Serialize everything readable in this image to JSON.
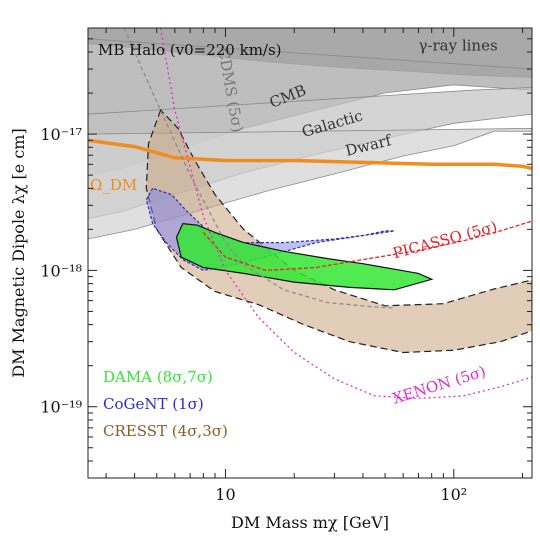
{
  "chart_data": {
    "type": "line",
    "title": "",
    "annotation": "MB Halo (v0=220 km/s)",
    "xlabel": "DM Mass   mχ [GeV]",
    "ylabel": "DM Magnetic Dipole   λχ [e cm]",
    "xscale": "log",
    "yscale": "log",
    "xlim": [
      2.5,
      220
    ],
    "ylim": [
      3e-20,
      6e-17
    ],
    "x_ticks": [
      {
        "value": 10,
        "label": "10"
      },
      {
        "value": 100,
        "label": "10²"
      }
    ],
    "y_ticks": [
      {
        "value": 1e-19,
        "label": "10⁻¹⁹"
      },
      {
        "value": 1e-18,
        "label": "10⁻¹⁸"
      },
      {
        "value": 1e-17,
        "label": "10⁻¹⁷"
      }
    ],
    "grid": false,
    "colors": {
      "dama": "#33e633",
      "cogent": "#7f7ff0",
      "cresst": "#c8a47e",
      "omega": "#f28c1e",
      "picasso": "#e8242c",
      "xenon": "#e62ad0",
      "cdms": "#8c8c8c",
      "exclusion": "#a8a8a8"
    },
    "exclusion_regions": [
      {
        "name": "γ-ray lines",
        "points": [
          [
            2.5,
            6e-17
          ],
          [
            220,
            6e-17
          ],
          [
            220,
            2.6e-17
          ],
          [
            120,
            2.7e-17
          ],
          [
            60,
            2.9e-17
          ],
          [
            30,
            3.1e-17
          ],
          [
            15,
            3.4e-17
          ],
          [
            8,
            3.8e-17
          ],
          [
            4,
            4.3e-17
          ],
          [
            2.5,
            4.6e-17
          ]
        ]
      },
      {
        "name": "CMB",
        "points": [
          [
            2.5,
            5e-17
          ],
          [
            220,
            3e-17
          ],
          [
            220,
            2.1e-17
          ],
          [
            100,
            2.3e-17
          ],
          [
            50,
            2e-17
          ],
          [
            25,
            1.5e-17
          ],
          [
            12,
            1.1e-17
          ],
          [
            6,
            7.6e-18
          ],
          [
            3.5,
            5.6e-18
          ],
          [
            2.5,
            5e-18
          ]
        ]
      },
      {
        "name": "Galactic",
        "points": [
          [
            2.5,
            1.4e-17
          ],
          [
            120,
            2.1e-17
          ],
          [
            220,
            2.2e-17
          ],
          [
            220,
            1.4e-17
          ],
          [
            100,
            1.2e-17
          ],
          [
            50,
            9.3e-18
          ],
          [
            25,
            7.1e-18
          ],
          [
            12,
            5.2e-18
          ],
          [
            6,
            3.6e-18
          ],
          [
            3.5,
            2.7e-18
          ],
          [
            2.5,
            2.4e-18
          ]
        ]
      },
      {
        "name": "Dwarf",
        "points": [
          [
            2.5,
            1e-17
          ],
          [
            220,
            1.1e-17
          ],
          [
            220,
            1.05e-17
          ],
          [
            150,
            1.05e-17
          ],
          [
            100,
            8.2e-18
          ],
          [
            60,
            6.9e-18
          ],
          [
            30,
            5.1e-18
          ],
          [
            15,
            3.8e-18
          ],
          [
            8,
            2.8e-18
          ],
          [
            4,
            2e-18
          ],
          [
            2.5,
            1.7e-18
          ]
        ]
      }
    ],
    "signal_regions": [
      {
        "name": "CRESST",
        "sigma": "4σ,3σ",
        "points": [
          [
            5.2,
            1.5e-17
          ],
          [
            4.6,
            8.5e-18
          ],
          [
            4.5,
            4e-18
          ],
          [
            5,
            2e-18
          ],
          [
            6.4,
            1.05e-18
          ],
          [
            9,
            7e-19
          ],
          [
            14,
            5.6e-19
          ],
          [
            22,
            4e-19
          ],
          [
            35,
            3e-19
          ],
          [
            60,
            2.5e-19
          ],
          [
            100,
            2.6e-19
          ],
          [
            160,
            3e-19
          ],
          [
            220,
            3.6e-19
          ],
          [
            220,
            8.5e-19
          ],
          [
            150,
            7.3e-19
          ],
          [
            90,
            5.7e-19
          ],
          [
            50,
            5.5e-19
          ],
          [
            30,
            7.2e-19
          ],
          [
            20,
            1e-18
          ],
          [
            12,
            2e-18
          ],
          [
            9,
            3.6e-18
          ],
          [
            7.3,
            6.5e-18
          ],
          [
            6.2,
            1.1e-17
          ]
        ]
      },
      {
        "name": "CoGeNT",
        "sigma": "1σ",
        "points": [
          [
            4.8,
            4e-18
          ],
          [
            4.5,
            3.3e-18
          ],
          [
            4.8,
            2.2e-18
          ],
          [
            5.5,
            1.6e-18
          ],
          [
            6.5,
            1.2e-18
          ],
          [
            8,
            1e-18
          ],
          [
            11,
            1.1e-18
          ],
          [
            16,
            1.3e-18
          ],
          [
            25,
            1.6e-18
          ],
          [
            40,
            1.8e-18
          ],
          [
            50,
            1.95e-18
          ],
          [
            55,
            1.95e-18
          ],
          [
            45,
            1.85e-18
          ],
          [
            30,
            1.7e-18
          ],
          [
            18,
            1.6e-18
          ],
          [
            12,
            1.6e-18
          ],
          [
            8.5,
            1.9e-18
          ],
          [
            6.8,
            2.7e-18
          ],
          [
            5.8,
            3.6e-18
          ]
        ]
      },
      {
        "name": "DAMA",
        "sigma": "8σ,7σ",
        "points": [
          [
            6.5,
            2.2e-18
          ],
          [
            6.1,
            1.75e-18
          ],
          [
            6.4,
            1.25e-18
          ],
          [
            8,
            1.05e-18
          ],
          [
            12,
            9.5e-19
          ],
          [
            20,
            8.2e-19
          ],
          [
            35,
            7.5e-19
          ],
          [
            55,
            7.2e-19
          ],
          [
            80,
            8.6e-19
          ],
          [
            70,
            9.5e-19
          ],
          [
            55,
            1.02e-18
          ],
          [
            40,
            1.12e-18
          ],
          [
            28,
            1.22e-18
          ],
          [
            18,
            1.38e-18
          ],
          [
            12,
            1.6e-18
          ],
          [
            9,
            1.9e-18
          ],
          [
            7.5,
            2.15e-18
          ]
        ]
      }
    ],
    "limit_curves": [
      {
        "name": "Ω_DM",
        "x": [
          2.5,
          4,
          6,
          10,
          20,
          40,
          80,
          150,
          200,
          220
        ],
        "y": [
          9e-18,
          8.1e-18,
          6.7e-18,
          6.4e-18,
          6.4e-18,
          6.2e-18,
          6e-18,
          6e-18,
          5.8e-18,
          5.6e-18
        ]
      },
      {
        "name": "CDMS (5σ)",
        "x": [
          3.6,
          4.8,
          7,
          10,
          12,
          18,
          28,
          45,
          55
        ],
        "y": [
          6e-17,
          2e-17,
          5e-18,
          1.6e-18,
          1.1e-18,
          7.2e-19,
          5.8e-19,
          5.4e-19,
          5.3e-19
        ]
      },
      {
        "name": "PICASSO (5σ)",
        "x": [
          8,
          10,
          15,
          25,
          40,
          70,
          110,
          160,
          220
        ],
        "y": [
          1.9e-18,
          1.25e-18,
          1e-18,
          1.05e-18,
          1.2e-18,
          1.4e-18,
          1.65e-18,
          1.95e-18,
          2.3e-18
        ]
      },
      {
        "name": "XENON (5σ)",
        "x": [
          5.2,
          6,
          8,
          10,
          14,
          20,
          30,
          45,
          70,
          110,
          160,
          220
        ],
        "y": [
          6e-17,
          1.5e-17,
          2.5e-18,
          1e-18,
          4.5e-19,
          2.5e-19,
          1.6e-19,
          1.2e-19,
          1.15e-19,
          1.2e-19,
          1.4e-19,
          1.65e-19
        ]
      }
    ],
    "region_labels": [
      "γ-ray lines",
      "CMB",
      "Galactic",
      "Dwarf",
      "CDMS (5σ)",
      "Ω_DM",
      "PICASSO (5σ)",
      "XENON (5σ)"
    ],
    "legend": [
      {
        "name": "DAMA",
        "sigma": "(8σ,7σ)",
        "color": "#33e633"
      },
      {
        "name": "CoGeNT",
        "sigma": "(1σ)",
        "color": "#2a2ae0"
      },
      {
        "name": "CRESST",
        "sigma": "(4σ,3σ)",
        "color": "#8b5a2b"
      }
    ],
    "legend_position": "bottom-left"
  }
}
